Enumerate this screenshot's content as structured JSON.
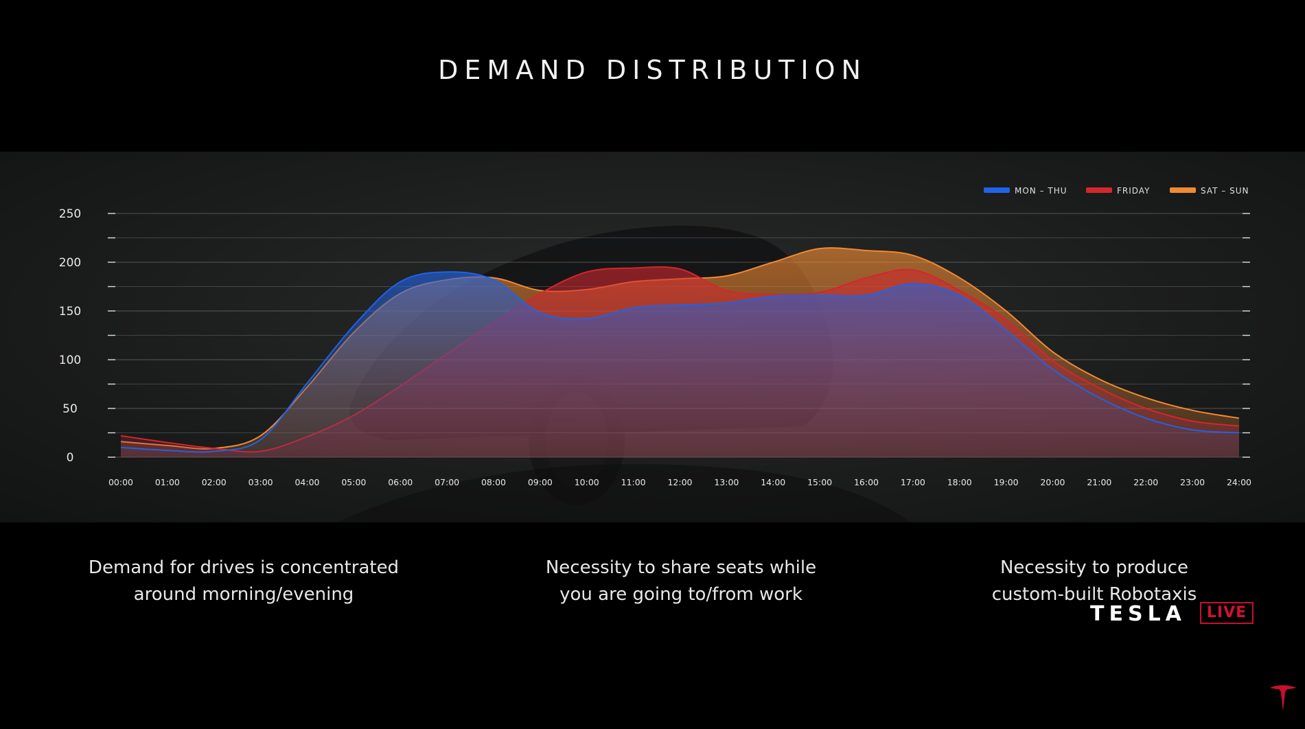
{
  "title": "DEMAND DISTRIBUTION",
  "captions": [
    {
      "line1": "Demand for drives is concentrated",
      "line2": "around morning/evening"
    },
    {
      "line1": "Necessity to share seats while",
      "line2": "you are going to/from work"
    },
    {
      "line1": "Necessity to produce",
      "line2": "custom-built Robotaxis"
    }
  ],
  "brand": {
    "wordmark": "TESLA",
    "badge": "LIVE"
  },
  "colors": {
    "mon_thu": "#1f63e6",
    "friday": "#d3272d",
    "sat_sun": "#f08a33",
    "badge": "#c8102e"
  },
  "chart_data": {
    "type": "area",
    "title": "",
    "xlabel": "",
    "ylabel": "",
    "ylim": [
      0,
      250
    ],
    "yticks": [
      0,
      50,
      100,
      150,
      200,
      250
    ],
    "grid": true,
    "legend_position": "top-right",
    "x": [
      "00:00",
      "01:00",
      "02:00",
      "03:00",
      "04:00",
      "05:00",
      "06:00",
      "07:00",
      "08:00",
      "09:00",
      "10:00",
      "11:00",
      "12:00",
      "13:00",
      "14:00",
      "15:00",
      "16:00",
      "17:00",
      "18:00",
      "19:00",
      "20:00",
      "21:00",
      "22:00",
      "23:00",
      "24:00"
    ],
    "series": [
      {
        "name": "SAT – SUN",
        "key": "sat_sun",
        "values": [
          16,
          12,
          9,
          22,
          72,
          128,
          168,
          182,
          184,
          171,
          172,
          180,
          183,
          186,
          200,
          214,
          212,
          207,
          184,
          150,
          108,
          80,
          61,
          48,
          40
        ]
      },
      {
        "name": "FRIDAY",
        "key": "friday",
        "values": [
          22,
          15,
          9,
          6,
          21,
          43,
          73,
          106,
          138,
          168,
          190,
          194,
          193,
          171,
          167,
          169,
          184,
          192,
          171,
          141,
          99,
          71,
          50,
          37,
          32
        ]
      },
      {
        "name": "MON – THU",
        "key": "mon_thu",
        "values": [
          10,
          7,
          6,
          18,
          76,
          135,
          180,
          190,
          182,
          148,
          142,
          153,
          156,
          158,
          165,
          166,
          166,
          178,
          166,
          130,
          90,
          61,
          40,
          28,
          25
        ]
      }
    ]
  }
}
